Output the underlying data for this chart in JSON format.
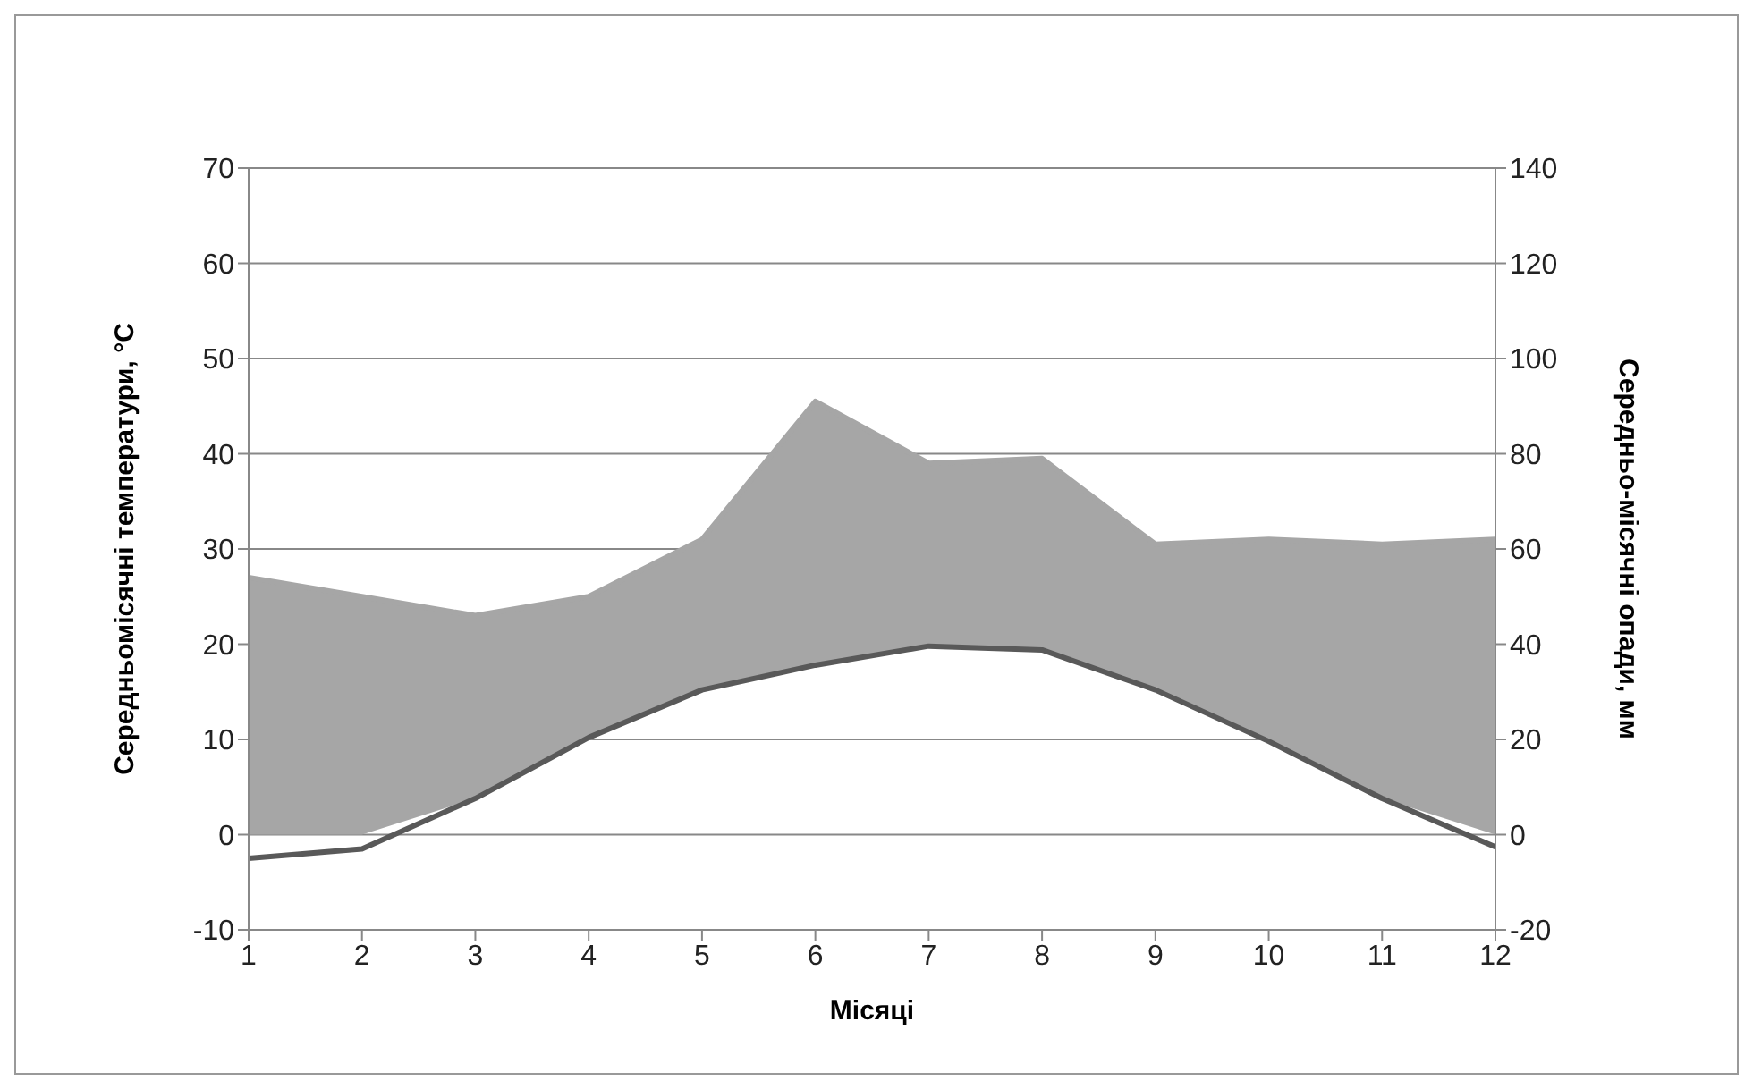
{
  "chart_data": {
    "type": "line",
    "xlabel": "Місяці",
    "ylabel": "Середньомісячні температури, °C",
    "y2label": "Середньо-місячні опади, мм",
    "x": [
      1,
      2,
      3,
      4,
      5,
      6,
      7,
      8,
      9,
      10,
      11,
      12
    ],
    "xlim": [
      1,
      12
    ],
    "xticks": [
      1,
      2,
      3,
      4,
      5,
      6,
      7,
      8,
      9,
      10,
      11,
      12
    ],
    "ylim": [
      -10,
      70
    ],
    "yticks": [
      -10,
      0,
      10,
      20,
      30,
      40,
      50,
      60,
      70
    ],
    "y2lim": [
      -20,
      140
    ],
    "y2ticks": [
      -20,
      0,
      20,
      40,
      60,
      80,
      100,
      120,
      140
    ],
    "grid": "y",
    "series": [
      {
        "type": "area",
        "axis": "y2",
        "color": "#a6a6a6",
        "values": [
          54,
          50,
          46,
          50,
          62,
          91,
          78,
          79,
          61,
          62,
          61,
          62
        ]
      },
      {
        "axis": "y",
        "color": "#595959",
        "values": [
          -2.5,
          -1.5,
          3.8,
          10.2,
          15.2,
          17.8,
          19.8,
          19.4,
          15.2,
          9.8,
          3.8,
          -1.3
        ]
      }
    ]
  }
}
